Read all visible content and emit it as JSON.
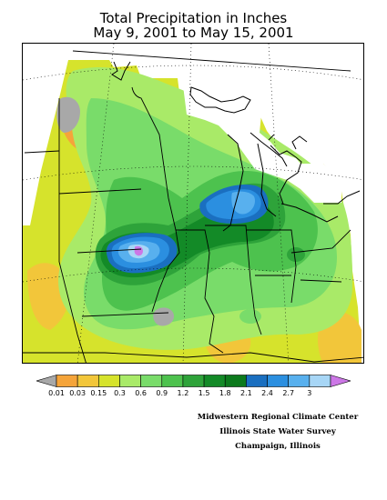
{
  "title": {
    "line1": "Total Precipitation in Inches",
    "line2": "May 9, 2001 to May 15, 2001"
  },
  "legend": {
    "bins": [
      {
        "color": "#a8a8a8"
      },
      {
        "color": "#f5a43a",
        "label": "0.01"
      },
      {
        "color": "#f2c63a",
        "label": "0.03"
      },
      {
        "color": "#d6e32c",
        "label": "0.15"
      },
      {
        "color": "#a9ea68",
        "label": "0.3"
      },
      {
        "color": "#79dc6a",
        "label": "0.6"
      },
      {
        "color": "#4dc24e",
        "label": "0.9"
      },
      {
        "color": "#2ea33a",
        "label": "1.2"
      },
      {
        "color": "#138a27",
        "label": "1.5"
      },
      {
        "color": "#0c7a1d",
        "label": "1.8"
      },
      {
        "color": "#1a6fc0",
        "label": "2.1"
      },
      {
        "color": "#2b8fe0",
        "label": "2.4"
      },
      {
        "color": "#58b0ee",
        "label": "2.7"
      },
      {
        "color": "#a7d6f6",
        "label": "3"
      },
      {
        "color": "#cc77e6"
      }
    ]
  },
  "credit": {
    "line1": "Midwestern Regional Climate Center",
    "line2": "Illinois State Water Survey",
    "line3": "Champaign, Illinois"
  }
}
